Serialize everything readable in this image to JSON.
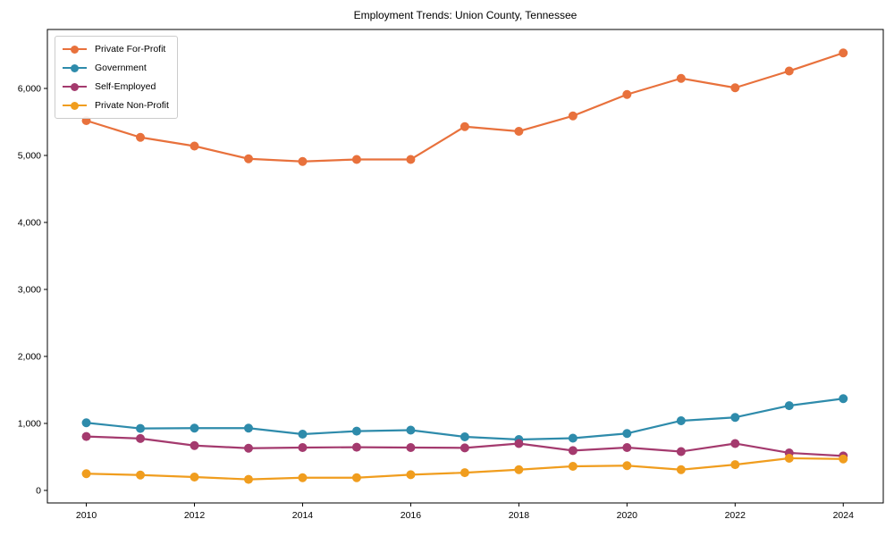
{
  "chart_data": {
    "type": "line",
    "title": "Employment Trends: Union County, Tennessee",
    "xlabel": "",
    "ylabel": "",
    "grid": false,
    "legend_position": "upper-left",
    "x": [
      2010,
      2011,
      2012,
      2013,
      2014,
      2015,
      2016,
      2017,
      2018,
      2019,
      2020,
      2021,
      2022,
      2023,
      2024
    ],
    "x_ticks": [
      2010,
      2012,
      2014,
      2016,
      2018,
      2020,
      2022,
      2024
    ],
    "y_ticks": [
      0,
      1000,
      2000,
      3000,
      4000,
      5000,
      6000
    ],
    "xlim": [
      2009.28,
      2024.74
    ],
    "ylim": [
      -187,
      6880
    ],
    "series": [
      {
        "name": "Private For-Profit",
        "color": "#e8713c",
        "values": [
          5520,
          5270,
          5140,
          4950,
          4910,
          4940,
          4940,
          5430,
          5360,
          5590,
          5910,
          6150,
          6010,
          6260,
          6530
        ]
      },
      {
        "name": "Government",
        "color": "#2e8bab",
        "values": [
          1010,
          925,
          930,
          930,
          840,
          885,
          900,
          800,
          760,
          780,
          850,
          1040,
          1090,
          1265,
          1370
        ]
      },
      {
        "name": "Self-Employed",
        "color": "#a43a6e",
        "values": [
          805,
          775,
          670,
          630,
          640,
          645,
          640,
          635,
          700,
          595,
          640,
          580,
          700,
          560,
          515
        ]
      },
      {
        "name": "Private Non-Profit",
        "color": "#f09d1e",
        "values": [
          250,
          230,
          200,
          165,
          190,
          190,
          235,
          265,
          310,
          360,
          370,
          310,
          385,
          480,
          470
        ]
      }
    ]
  }
}
